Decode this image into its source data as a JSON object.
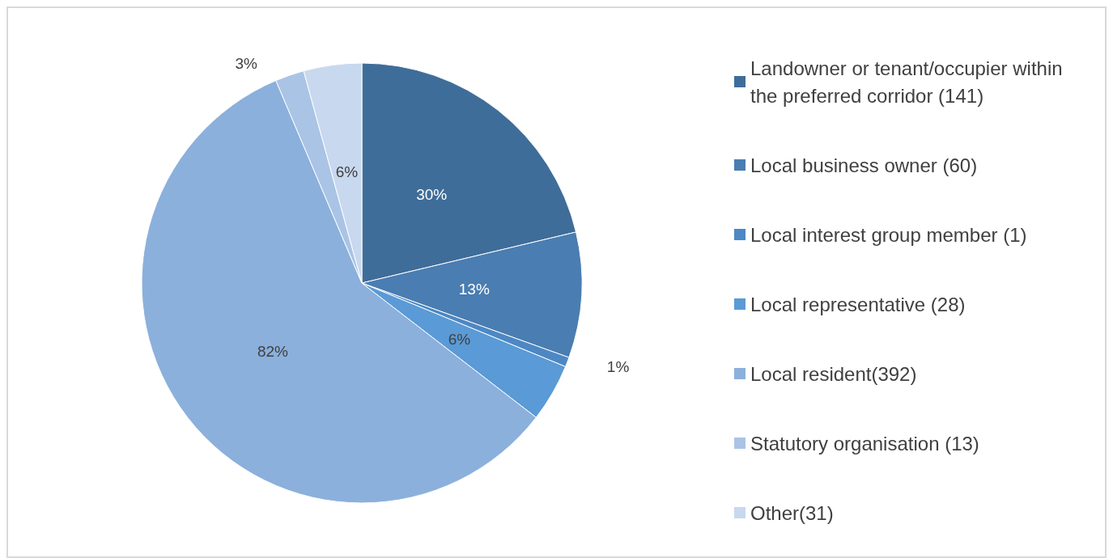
{
  "chart_data": {
    "type": "pie",
    "categories": [
      "Landowner or tenant/occupier within the preferred corridor (141)",
      "Local business owner (60)",
      "Local interest group member (1)",
      "Local representative (28)",
      "Local resident(392)",
      "Statutory organisation (13)",
      "Other(31)"
    ],
    "values": [
      30,
      13,
      1,
      6,
      82,
      3,
      6
    ],
    "colors": [
      "#3f6d99",
      "#4a7db1",
      "#4d88c4",
      "#5a9ad6",
      "#8bb0dc",
      "#aac4e6",
      "#c8d8ee"
    ],
    "value_labels": [
      "30%",
      "13%",
      "1%",
      "6%",
      "82%",
      "3%",
      "6%"
    ],
    "legend": "right"
  }
}
